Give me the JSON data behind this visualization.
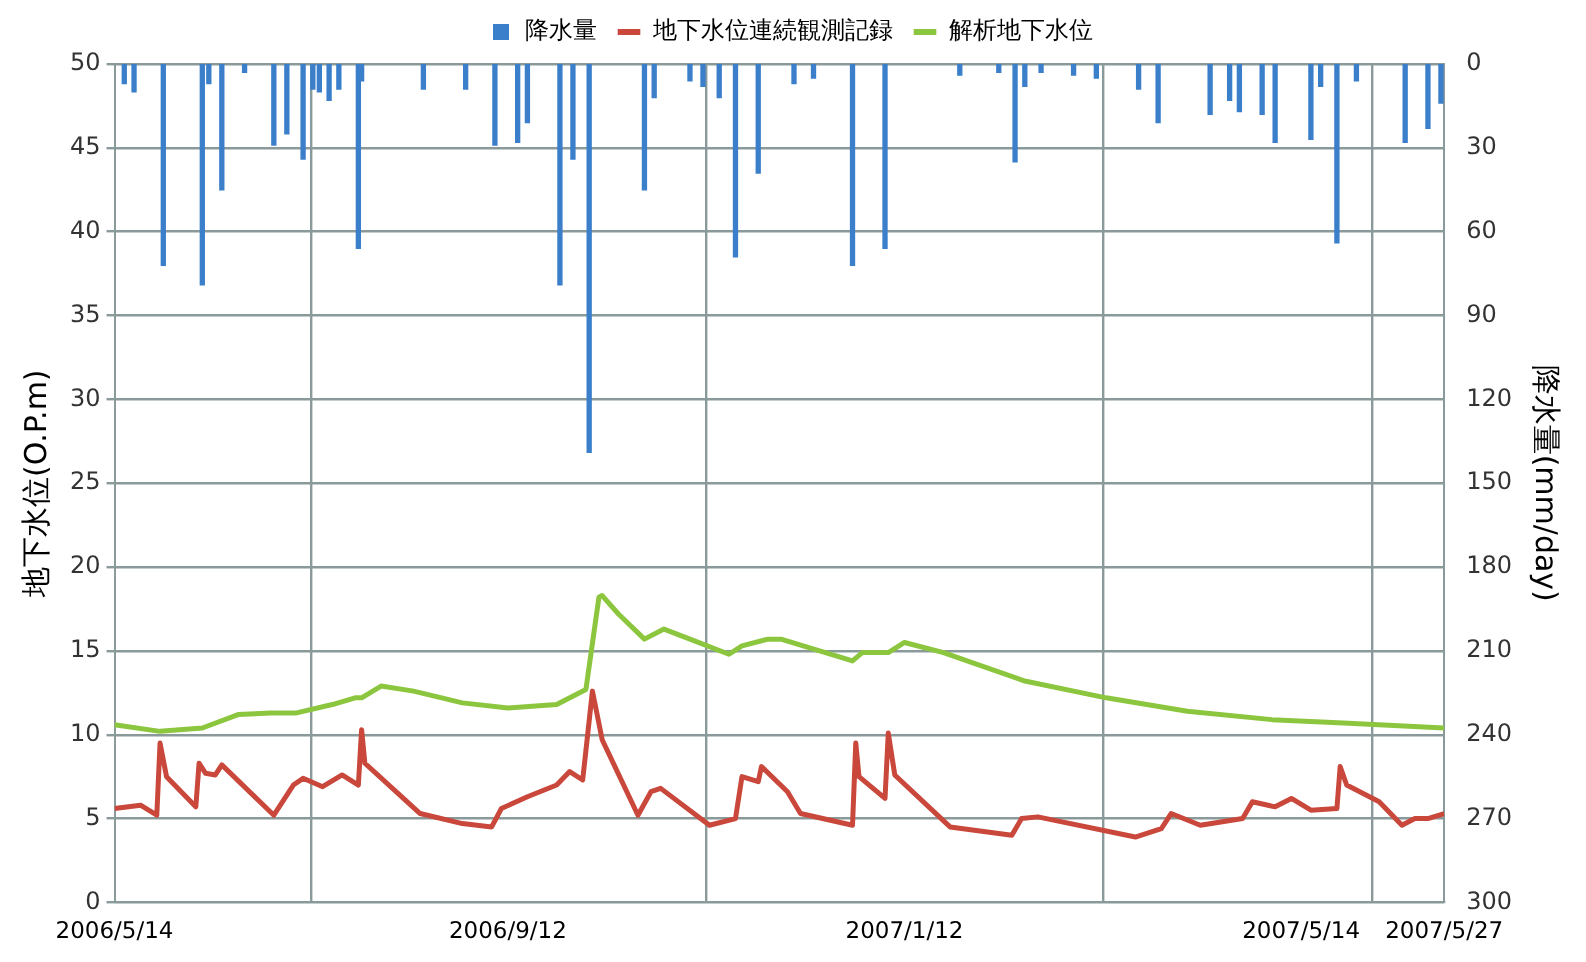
{
  "chart_data": {
    "type": "line",
    "ylabel": "地下水位(O.P.m)",
    "y2label": "降水量(mm/day)",
    "legend": "top",
    "grid": true,
    "marker": "none",
    "line_style": "solid",
    "xlim": [
      "2006-05-14",
      "2007-06-27"
    ],
    "xticks": [
      {
        "value": "2006-05-14",
        "label": "2006/5/14"
      },
      {
        "value": "2006-09-12",
        "label": "2006/9/12"
      },
      {
        "value": "2007-01-12",
        "label": "2007/1/12"
      },
      {
        "value": "2007-05-14",
        "label": "2007/5/14"
      },
      {
        "value": "2007-06-27",
        "label": "2007/5/27"
      }
    ],
    "ylim": [
      0,
      50
    ],
    "yticks": [
      0,
      5,
      10,
      15,
      20,
      25,
      30,
      35,
      40,
      45,
      50
    ],
    "y2lim": [
      300,
      0
    ],
    "y2ticks": [
      0,
      30,
      60,
      90,
      120,
      150,
      180,
      210,
      240,
      270,
      300
    ],
    "series": [
      {
        "name": "降水量",
        "type": "bar",
        "axis": "y2",
        "color": "#3b7fcb",
        "x": [
          "2006-05-17",
          "2006-05-20",
          "2006-05-29",
          "2006-06-10",
          "2006-06-12",
          "2006-06-16",
          "2006-06-23",
          "2006-07-02",
          "2006-07-06",
          "2006-07-11",
          "2006-07-14",
          "2006-07-16",
          "2006-07-19",
          "2006-07-22",
          "2006-07-28",
          "2006-07-29",
          "2006-08-17",
          "2006-08-30",
          "2006-09-08",
          "2006-09-15",
          "2006-09-18",
          "2006-09-28",
          "2006-10-02",
          "2006-10-07",
          "2006-10-24",
          "2006-10-27",
          "2006-11-07",
          "2006-11-11",
          "2006-11-16",
          "2006-11-21",
          "2006-11-28",
          "2006-12-09",
          "2006-12-15",
          "2006-12-27",
          "2007-01-06",
          "2007-01-29",
          "2007-02-10",
          "2007-02-15",
          "2007-02-18",
          "2007-02-23",
          "2007-03-05",
          "2007-03-12",
          "2007-03-25",
          "2007-03-31",
          "2007-04-16",
          "2007-04-22",
          "2007-04-25",
          "2007-05-02",
          "2007-05-06",
          "2007-05-17",
          "2007-05-20",
          "2007-05-25",
          "2007-05-31",
          "2007-06-15",
          "2007-06-22",
          "2007-06-26"
        ],
        "values": [
          7,
          10,
          72,
          79,
          7,
          45,
          3,
          29,
          25,
          34,
          9,
          10,
          13,
          9,
          66,
          6,
          9,
          9,
          29,
          28,
          21,
          79,
          34,
          139,
          45,
          12,
          6,
          8,
          12,
          69,
          39,
          7,
          5,
          72,
          66,
          4,
          3,
          35,
          8,
          3,
          4,
          5,
          9,
          21,
          18,
          13,
          17,
          18,
          28,
          27,
          8,
          64,
          6,
          28,
          23,
          14
        ]
      },
      {
        "name": "地下水位連続観測記録",
        "color": "#c9473b",
        "x": [
          "2006-05-14",
          "2006-05-22",
          "2006-05-27",
          "2006-05-28",
          "2006-05-30",
          "2006-06-08",
          "2006-06-09",
          "2006-06-11",
          "2006-06-14",
          "2006-06-16",
          "2006-07-02",
          "2006-07-08",
          "2006-07-11",
          "2006-07-17",
          "2006-07-23",
          "2006-07-28",
          "2006-07-29",
          "2006-07-30",
          "2006-08-16",
          "2006-08-29",
          "2006-09-07",
          "2006-09-10",
          "2006-09-18",
          "2006-09-27",
          "2006-10-01",
          "2006-10-05",
          "2006-10-08",
          "2006-10-11",
          "2006-10-22",
          "2006-10-26",
          "2006-10-29",
          "2006-11-13",
          "2006-11-21",
          "2006-11-23",
          "2006-11-28",
          "2006-11-29",
          "2006-12-07",
          "2006-12-11",
          "2006-12-27",
          "2006-12-28",
          "2006-12-29",
          "2007-01-06",
          "2007-01-07",
          "2007-01-09",
          "2007-01-26",
          "2007-02-14",
          "2007-02-17",
          "2007-02-22",
          "2007-03-24",
          "2007-04-01",
          "2007-04-04",
          "2007-04-13",
          "2007-04-26",
          "2007-04-29",
          "2007-05-06",
          "2007-05-11",
          "2007-05-17",
          "2007-05-25",
          "2007-05-26",
          "2007-05-28",
          "2007-06-07",
          "2007-06-14",
          "2007-06-18",
          "2007-06-22",
          "2007-06-27"
        ],
        "values": [
          5.6,
          5.8,
          5.2,
          9.5,
          7.5,
          5.7,
          8.3,
          7.7,
          7.6,
          8.2,
          5.2,
          7.0,
          7.4,
          6.9,
          7.6,
          7.0,
          10.3,
          8.3,
          5.3,
          4.7,
          4.5,
          5.6,
          6.3,
          7.0,
          7.8,
          7.3,
          12.6,
          9.7,
          5.2,
          6.6,
          6.8,
          4.6,
          5.0,
          7.5,
          7.2,
          8.1,
          6.6,
          5.3,
          4.6,
          9.5,
          7.5,
          6.2,
          10.1,
          7.6,
          4.5,
          4.0,
          5.0,
          5.1,
          3.9,
          4.4,
          5.3,
          4.6,
          5.0,
          6.0,
          5.7,
          6.2,
          5.5,
          5.6,
          8.1,
          7.0,
          6.0,
          4.6,
          5.0,
          5.0,
          5.3
        ]
      },
      {
        "name": "解析地下水位",
        "color": "#8cc63f",
        "x": [
          "2006-05-14",
          "2006-05-28",
          "2006-06-10",
          "2006-06-21",
          "2006-07-01",
          "2006-07-09",
          "2006-07-20",
          "2006-07-27",
          "2006-07-29",
          "2006-08-04",
          "2006-08-14",
          "2006-08-29",
          "2006-09-12",
          "2006-09-27",
          "2006-10-06",
          "2006-10-10",
          "2006-10-11",
          "2006-10-16",
          "2006-10-24",
          "2006-10-30",
          "2006-11-07",
          "2006-11-19",
          "2006-11-23",
          "2006-12-01",
          "2006-12-05",
          "2006-12-27",
          "2006-12-30",
          "2007-01-07",
          "2007-01-12",
          "2007-01-24",
          "2007-02-18",
          "2007-03-15",
          "2007-04-09",
          "2007-05-05",
          "2007-05-27",
          "2007-06-27"
        ],
        "values": [
          10.6,
          10.2,
          10.4,
          11.2,
          11.3,
          11.3,
          11.8,
          12.2,
          12.2,
          12.9,
          12.6,
          11.9,
          11.6,
          11.8,
          12.7,
          18.2,
          18.3,
          17.2,
          15.7,
          16.3,
          15.7,
          14.8,
          15.3,
          15.7,
          15.7,
          14.4,
          14.9,
          14.9,
          15.5,
          14.9,
          13.2,
          12.2,
          11.4,
          10.9,
          10.7,
          10.4
        ]
      }
    ]
  }
}
